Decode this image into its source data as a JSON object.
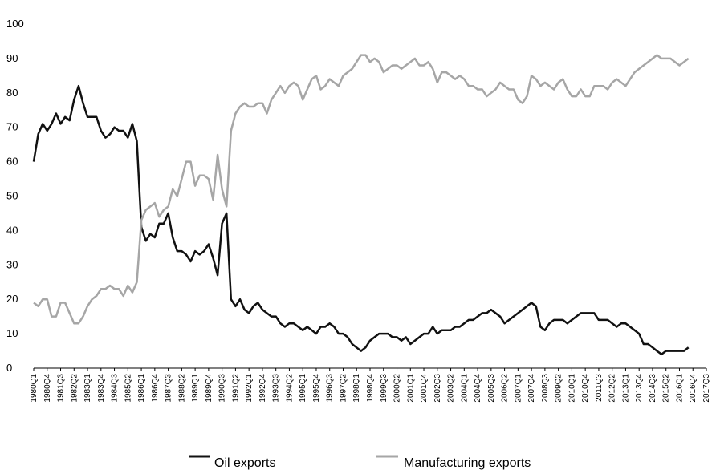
{
  "chart_data": {
    "type": "line",
    "title": "",
    "xlabel": "",
    "ylabel": "",
    "ylim": [
      0,
      100
    ],
    "yticks": [
      0,
      10,
      20,
      30,
      40,
      50,
      60,
      70,
      80,
      90,
      100
    ],
    "grid": false,
    "legend_position": "bottom",
    "x_start": "1980Q1",
    "x_end": "2017Q3",
    "x_tick_labels": [
      "1980Q1",
      "1980Q4",
      "1981Q3",
      "1982Q2",
      "1983Q1",
      "1983Q4",
      "1984Q3",
      "1985Q2",
      "1986Q1",
      "1986Q4",
      "1987Q3",
      "1988Q2",
      "1989Q1",
      "1989Q4",
      "1990Q3",
      "1991Q2",
      "1992Q1",
      "1992Q4",
      "1993Q3",
      "1994Q2",
      "1995Q1",
      "1995Q4",
      "1996Q3",
      "1997Q2",
      "1998Q1",
      "1998Q4",
      "1999Q3",
      "2000Q2",
      "2001Q1",
      "2001Q4",
      "2002Q3",
      "2003Q2",
      "2004Q1",
      "2004Q4",
      "2005Q3",
      "2006Q2",
      "2007Q1",
      "2007Q4",
      "2008Q3",
      "2009Q2",
      "2010Q1",
      "2010Q4",
      "2011Q3",
      "2012Q2",
      "2013Q1",
      "2013Q4",
      "2014Q3",
      "2015Q2",
      "2016Q1",
      "2016Q4",
      "2017Q3"
    ],
    "series": [
      {
        "name": "Oil exports",
        "color": "#111111",
        "anchors": [
          [
            "1980Q1",
            60
          ],
          [
            "1980Q2",
            68
          ],
          [
            "1980Q3",
            71
          ],
          [
            "1980Q4",
            69
          ],
          [
            "1981Q1",
            71
          ],
          [
            "1981Q2",
            74
          ],
          [
            "1981Q3",
            71
          ],
          [
            "1981Q4",
            73
          ],
          [
            "1982Q1",
            72
          ],
          [
            "1982Q2",
            78
          ],
          [
            "1982Q3",
            82
          ],
          [
            "1982Q4",
            77
          ],
          [
            "1983Q1",
            73
          ],
          [
            "1983Q2",
            73
          ],
          [
            "1983Q3",
            73
          ],
          [
            "1983Q4",
            69
          ],
          [
            "1984Q1",
            67
          ],
          [
            "1984Q2",
            68
          ],
          [
            "1984Q3",
            70
          ],
          [
            "1984Q4",
            69
          ],
          [
            "1985Q1",
            69
          ],
          [
            "1985Q2",
            67
          ],
          [
            "1985Q3",
            71
          ],
          [
            "1985Q4",
            66
          ],
          [
            "1986Q1",
            41
          ],
          [
            "1986Q2",
            37
          ],
          [
            "1986Q3",
            39
          ],
          [
            "1986Q4",
            38
          ],
          [
            "1987Q1",
            42
          ],
          [
            "1987Q2",
            42
          ],
          [
            "1987Q3",
            45
          ],
          [
            "1987Q4",
            38
          ],
          [
            "1988Q1",
            34
          ],
          [
            "1988Q2",
            34
          ],
          [
            "1988Q3",
            33
          ],
          [
            "1988Q4",
            31
          ],
          [
            "1989Q1",
            34
          ],
          [
            "1989Q2",
            33
          ],
          [
            "1989Q3",
            34
          ],
          [
            "1989Q4",
            36
          ],
          [
            "1990Q1",
            32
          ],
          [
            "1990Q2",
            27
          ],
          [
            "1990Q3",
            42
          ],
          [
            "1990Q4",
            45
          ],
          [
            "1991Q1",
            20
          ],
          [
            "1991Q2",
            18
          ],
          [
            "1991Q3",
            20
          ],
          [
            "1991Q4",
            17
          ],
          [
            "1992Q1",
            16
          ],
          [
            "1992Q2",
            18
          ],
          [
            "1992Q3",
            19
          ],
          [
            "1992Q4",
            17
          ],
          [
            "1993Q1",
            16
          ],
          [
            "1993Q2",
            15
          ],
          [
            "1993Q3",
            15
          ],
          [
            "1993Q4",
            13
          ],
          [
            "1994Q1",
            12
          ],
          [
            "1994Q2",
            13
          ],
          [
            "1994Q3",
            13
          ],
          [
            "1994Q4",
            12
          ],
          [
            "1995Q1",
            11
          ],
          [
            "1995Q2",
            12
          ],
          [
            "1995Q3",
            11
          ],
          [
            "1995Q4",
            10
          ],
          [
            "1996Q1",
            12
          ],
          [
            "1996Q2",
            12
          ],
          [
            "1996Q3",
            13
          ],
          [
            "1996Q4",
            12
          ],
          [
            "1997Q1",
            10
          ],
          [
            "1997Q2",
            10
          ],
          [
            "1997Q3",
            9
          ],
          [
            "1997Q4",
            7
          ],
          [
            "1998Q1",
            6
          ],
          [
            "1998Q2",
            5
          ],
          [
            "1998Q3",
            6
          ],
          [
            "1998Q4",
            8
          ],
          [
            "1999Q1",
            9
          ],
          [
            "1999Q2",
            10
          ],
          [
            "1999Q3",
            10
          ],
          [
            "1999Q4",
            10
          ],
          [
            "2000Q1",
            9
          ],
          [
            "2000Q2",
            9
          ],
          [
            "2000Q3",
            8
          ],
          [
            "2000Q4",
            9
          ],
          [
            "2001Q1",
            7
          ],
          [
            "2001Q2",
            8
          ],
          [
            "2001Q3",
            9
          ],
          [
            "2001Q4",
            10
          ],
          [
            "2002Q1",
            10
          ],
          [
            "2002Q2",
            12
          ],
          [
            "2002Q3",
            10
          ],
          [
            "2002Q4",
            11
          ],
          [
            "2003Q1",
            11
          ],
          [
            "2003Q2",
            11
          ],
          [
            "2003Q3",
            12
          ],
          [
            "2003Q4",
            12
          ],
          [
            "2004Q1",
            13
          ],
          [
            "2004Q2",
            14
          ],
          [
            "2004Q3",
            14
          ],
          [
            "2004Q4",
            15
          ],
          [
            "2005Q1",
            16
          ],
          [
            "2005Q2",
            16
          ],
          [
            "2005Q3",
            17
          ],
          [
            "2005Q4",
            16
          ],
          [
            "2006Q1",
            15
          ],
          [
            "2006Q2",
            13
          ],
          [
            "2006Q3",
            14
          ],
          [
            "2006Q4",
            15
          ],
          [
            "2007Q1",
            16
          ],
          [
            "2007Q2",
            17
          ],
          [
            "2007Q3",
            18
          ],
          [
            "2007Q4",
            19
          ],
          [
            "2008Q1",
            18
          ],
          [
            "2008Q2",
            12
          ],
          [
            "2008Q3",
            11
          ],
          [
            "2008Q4",
            13
          ],
          [
            "2009Q1",
            14
          ],
          [
            "2009Q2",
            14
          ],
          [
            "2009Q3",
            14
          ],
          [
            "2009Q4",
            13
          ],
          [
            "2010Q1",
            14
          ],
          [
            "2010Q2",
            15
          ],
          [
            "2010Q3",
            16
          ],
          [
            "2010Q4",
            16
          ],
          [
            "2011Q1",
            16
          ],
          [
            "2011Q2",
            16
          ],
          [
            "2011Q3",
            14
          ],
          [
            "2011Q4",
            14
          ],
          [
            "2012Q1",
            14
          ],
          [
            "2012Q2",
            13
          ],
          [
            "2012Q3",
            12
          ],
          [
            "2012Q4",
            13
          ],
          [
            "2013Q1",
            13
          ],
          [
            "2013Q2",
            12
          ],
          [
            "2013Q3",
            11
          ],
          [
            "2013Q4",
            10
          ],
          [
            "2014Q1",
            7
          ],
          [
            "2014Q2",
            7
          ],
          [
            "2014Q3",
            6
          ],
          [
            "2014Q4",
            5
          ],
          [
            "2015Q1",
            4
          ],
          [
            "2015Q2",
            5
          ],
          [
            "2015Q3",
            5
          ],
          [
            "2015Q4",
            5
          ],
          [
            "2016Q1",
            5
          ],
          [
            "2016Q2",
            5
          ],
          [
            "2016Q3",
            6
          ]
        ]
      },
      {
        "name": "Manufacturing exports",
        "color": "#a6a6a6",
        "anchors": [
          [
            "1980Q1",
            19
          ],
          [
            "1980Q2",
            18
          ],
          [
            "1980Q3",
            20
          ],
          [
            "1980Q4",
            20
          ],
          [
            "1981Q1",
            15
          ],
          [
            "1981Q2",
            15
          ],
          [
            "1981Q3",
            19
          ],
          [
            "1981Q4",
            19
          ],
          [
            "1982Q1",
            16
          ],
          [
            "1982Q2",
            13
          ],
          [
            "1982Q3",
            13
          ],
          [
            "1982Q4",
            15
          ],
          [
            "1983Q1",
            18
          ],
          [
            "1983Q2",
            20
          ],
          [
            "1983Q3",
            21
          ],
          [
            "1983Q4",
            23
          ],
          [
            "1984Q1",
            23
          ],
          [
            "1984Q2",
            24
          ],
          [
            "1984Q3",
            23
          ],
          [
            "1984Q4",
            23
          ],
          [
            "1985Q1",
            21
          ],
          [
            "1985Q2",
            24
          ],
          [
            "1985Q3",
            22
          ],
          [
            "1985Q4",
            25
          ],
          [
            "1986Q1",
            43
          ],
          [
            "1986Q2",
            46
          ],
          [
            "1986Q3",
            47
          ],
          [
            "1986Q4",
            48
          ],
          [
            "1987Q1",
            44
          ],
          [
            "1987Q2",
            46
          ],
          [
            "1987Q3",
            47
          ],
          [
            "1987Q4",
            52
          ],
          [
            "1988Q1",
            50
          ],
          [
            "1988Q2",
            55
          ],
          [
            "1988Q3",
            60
          ],
          [
            "1988Q4",
            60
          ],
          [
            "1989Q1",
            53
          ],
          [
            "1989Q2",
            56
          ],
          [
            "1989Q3",
            56
          ],
          [
            "1989Q4",
            55
          ],
          [
            "1990Q1",
            49
          ],
          [
            "1990Q2",
            62
          ],
          [
            "1990Q3",
            52
          ],
          [
            "1990Q4",
            47
          ],
          [
            "1991Q1",
            69
          ],
          [
            "1991Q2",
            74
          ],
          [
            "1991Q3",
            76
          ],
          [
            "1991Q4",
            77
          ],
          [
            "1992Q1",
            76
          ],
          [
            "1992Q2",
            76
          ],
          [
            "1992Q3",
            77
          ],
          [
            "1992Q4",
            77
          ],
          [
            "1993Q1",
            74
          ],
          [
            "1993Q2",
            78
          ],
          [
            "1993Q3",
            80
          ],
          [
            "1993Q4",
            82
          ],
          [
            "1994Q1",
            80
          ],
          [
            "1994Q2",
            82
          ],
          [
            "1994Q3",
            83
          ],
          [
            "1994Q4",
            82
          ],
          [
            "1995Q1",
            78
          ],
          [
            "1995Q2",
            81
          ],
          [
            "1995Q3",
            84
          ],
          [
            "1995Q4",
            85
          ],
          [
            "1996Q1",
            81
          ],
          [
            "1996Q2",
            82
          ],
          [
            "1996Q3",
            84
          ],
          [
            "1996Q4",
            83
          ],
          [
            "1997Q1",
            82
          ],
          [
            "1997Q2",
            85
          ],
          [
            "1997Q3",
            86
          ],
          [
            "1997Q4",
            87
          ],
          [
            "1998Q1",
            89
          ],
          [
            "1998Q2",
            91
          ],
          [
            "1998Q3",
            91
          ],
          [
            "1998Q4",
            89
          ],
          [
            "1999Q1",
            90
          ],
          [
            "1999Q2",
            89
          ],
          [
            "1999Q3",
            86
          ],
          [
            "1999Q4",
            87
          ],
          [
            "2000Q1",
            88
          ],
          [
            "2000Q2",
            88
          ],
          [
            "2000Q3",
            87
          ],
          [
            "2000Q4",
            88
          ],
          [
            "2001Q1",
            89
          ],
          [
            "2001Q2",
            90
          ],
          [
            "2001Q3",
            88
          ],
          [
            "2001Q4",
            88
          ],
          [
            "2002Q1",
            89
          ],
          [
            "2002Q2",
            87
          ],
          [
            "2002Q3",
            83
          ],
          [
            "2002Q4",
            86
          ],
          [
            "2003Q1",
            86
          ],
          [
            "2003Q2",
            85
          ],
          [
            "2003Q3",
            84
          ],
          [
            "2003Q4",
            85
          ],
          [
            "2004Q1",
            84
          ],
          [
            "2004Q2",
            82
          ],
          [
            "2004Q3",
            82
          ],
          [
            "2004Q4",
            81
          ],
          [
            "2005Q1",
            81
          ],
          [
            "2005Q2",
            79
          ],
          [
            "2005Q3",
            80
          ],
          [
            "2005Q4",
            81
          ],
          [
            "2006Q1",
            83
          ],
          [
            "2006Q2",
            82
          ],
          [
            "2006Q3",
            81
          ],
          [
            "2006Q4",
            81
          ],
          [
            "2007Q1",
            78
          ],
          [
            "2007Q2",
            77
          ],
          [
            "2007Q3",
            79
          ],
          [
            "2007Q4",
            85
          ],
          [
            "2008Q1",
            84
          ],
          [
            "2008Q2",
            82
          ],
          [
            "2008Q3",
            83
          ],
          [
            "2008Q4",
            82
          ],
          [
            "2009Q1",
            81
          ],
          [
            "2009Q2",
            83
          ],
          [
            "2009Q3",
            84
          ],
          [
            "2009Q4",
            81
          ],
          [
            "2010Q1",
            79
          ],
          [
            "2010Q2",
            79
          ],
          [
            "2010Q3",
            81
          ],
          [
            "2010Q4",
            79
          ],
          [
            "2011Q1",
            79
          ],
          [
            "2011Q2",
            82
          ],
          [
            "2011Q3",
            82
          ],
          [
            "2011Q4",
            82
          ],
          [
            "2012Q1",
            81
          ],
          [
            "2012Q2",
            83
          ],
          [
            "2012Q3",
            84
          ],
          [
            "2012Q4",
            83
          ],
          [
            "2013Q1",
            82
          ],
          [
            "2013Q2",
            84
          ],
          [
            "2013Q3",
            86
          ],
          [
            "2013Q4",
            87
          ],
          [
            "2014Q1",
            88
          ],
          [
            "2014Q2",
            89
          ],
          [
            "2014Q3",
            90
          ],
          [
            "2014Q4",
            91
          ],
          [
            "2015Q1",
            90
          ],
          [
            "2015Q2",
            90
          ],
          [
            "2015Q3",
            90
          ],
          [
            "2015Q4",
            89
          ],
          [
            "2016Q1",
            88
          ],
          [
            "2016Q2",
            89
          ],
          [
            "2016Q3",
            90
          ]
        ]
      }
    ]
  }
}
